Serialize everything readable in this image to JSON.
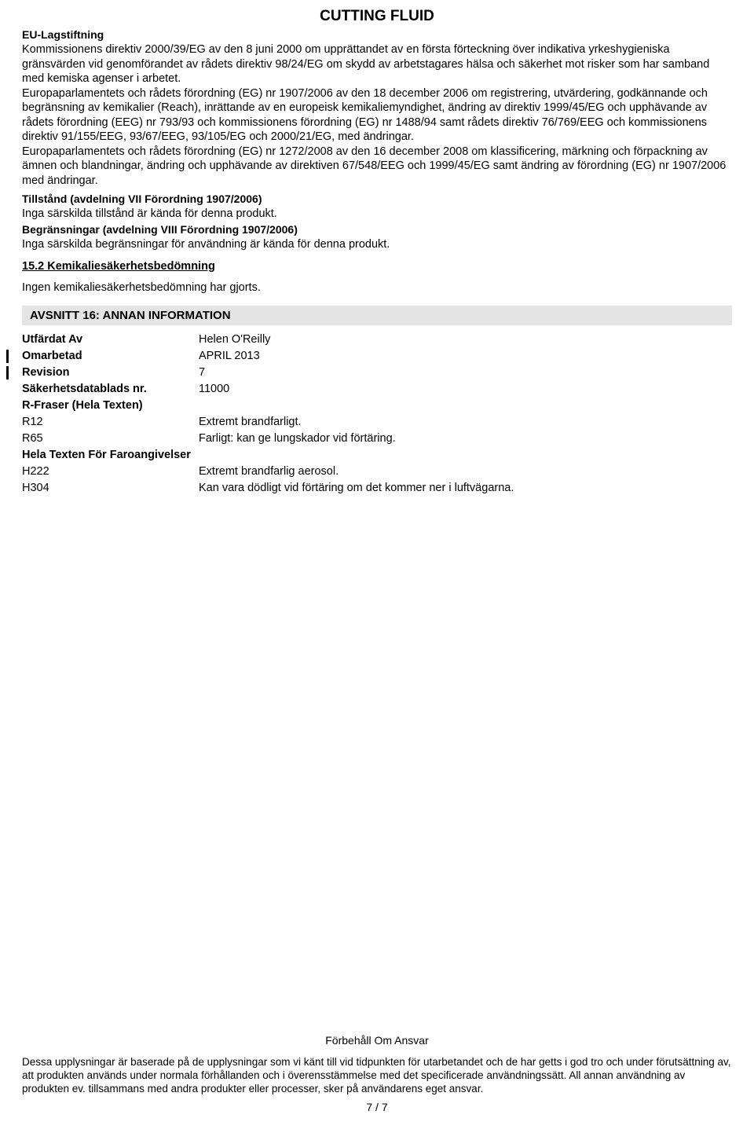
{
  "title": "CUTTING FLUID",
  "euHeading": "EU-Lagstiftning",
  "euBody": "Kommissionens direktiv 2000/39/EG av den 8 juni 2000 om upprättandet av en första förteckning över indikativa yrkeshygieniska gränsvärden vid genomförandet av rådets direktiv 98/24/EG om skydd av arbetstagares hälsa och säkerhet mot risker som har samband med kemiska agenser i arbetet.\nEuropaparlamentets och rådets förordning (EG) nr 1907/2006 av den 18 december 2006 om registrering,  utvärdering, godkännande och begränsning av kemikalier (Reach),  inrättande av en europeisk kemikaliemyndighet,  ändring av direktiv 1999/45/EG och upphävande av rådets förordning (EEG) nr 793/93 och kommissionens förordning (EG) nr 1488/94 samt rådets direktiv 76/769/EEG och kommissionens direktiv 91/155/EEG,  93/67/EEG,  93/105/EG och 2000/21/EG,  med ändringar.\nEuropaparlamentets och rådets förordning (EG) nr 1272/2008 av den 16 december 2008 om klassificering,  märkning och förpackning av ämnen och blandningar,  ändring och upphävande av direktiven 67/548/EEG och 1999/45/EG samt ändring av förordning (EG) nr 1907/2006 med ändringar.",
  "tillstandHeading": "Tillstånd (avdelning VII Förordning 1907/2006)",
  "tillstandText": "Inga särskilda tillstånd är kända för denna produkt.",
  "begransningarHeading": "Begränsningar (avdelning VIII Förordning 1907/2006)",
  "begransningarText": "Inga särskilda begränsningar för användning är kända för denna produkt.",
  "section15_2Heading": "15.2 Kemikaliesäkerhetsbedömning",
  "section15_2Text": "Ingen kemikaliesäkerhetsbedömning har gjorts.",
  "section16Bar": "AVSNITT 16: ANNAN INFORMATION",
  "rows": {
    "utfardat": {
      "label": "Utfärdat Av",
      "value": "Helen O'Reilly"
    },
    "omarbetad": {
      "label": "Omarbetad",
      "value": "APRIL 2013"
    },
    "revision": {
      "label": "Revision",
      "value": "7"
    },
    "sdsnr": {
      "label": "Säkerhetsdatablads nr.",
      "value": "11000"
    }
  },
  "rFraserHeading": "R-Fraser (Hela Texten)",
  "rFraser": [
    {
      "code": "R12",
      "text": "Extremt brandfarligt."
    },
    {
      "code": "R65",
      "text": "Farligt: kan ge lungskador vid förtäring."
    }
  ],
  "hazardHeading": "Hela Texten För Faroangivelser",
  "hazards": [
    {
      "code": "H222",
      "text": "Extremt brandfarlig aerosol."
    },
    {
      "code": "H304",
      "text": "Kan vara dödligt vid förtäring om det kommer ner i luftvägarna."
    }
  ],
  "disclaimerTitle": "Förbehåll Om Ansvar",
  "disclaimerText": "Dessa upplysningar är baserade på de upplysningar som vi känt till vid tidpunkten för utarbetandet och de har getts i god tro och under förutsättning av,  att produkten används under normala förhållanden och i överensstämmelse med det specificerade användningssätt. All annan användning av produkten ev. tillsammans med andra produkter eller processer, sker på användarens eget ansvar.",
  "pageNumber": "7 /  7"
}
